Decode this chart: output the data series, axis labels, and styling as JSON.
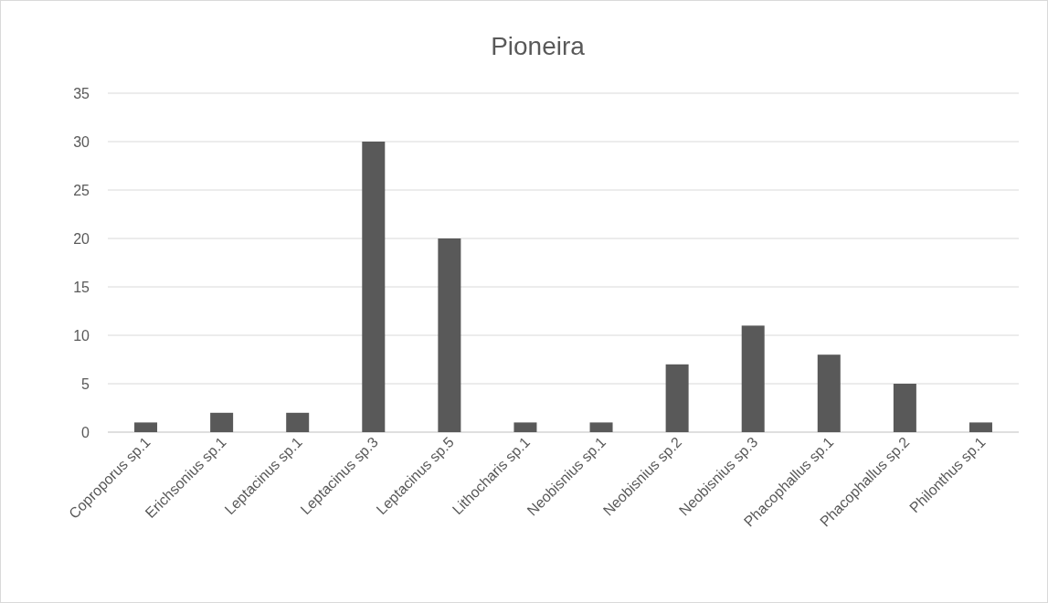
{
  "chart_data": {
    "type": "bar",
    "title": "Pioneira",
    "categories": [
      "Coproporus sp.1",
      "Erichsonius sp.1",
      "Leptacinus sp.1",
      "Leptacinus sp.3",
      "Leptacinus sp.5",
      "Lithocharis sp.1",
      "Neobisnius sp.1",
      "Neobisnius sp.2",
      "Neobisnius sp.3",
      "Phacophallus sp.1",
      "Phacophallus sp.2",
      "Philonthus sp.1"
    ],
    "values": [
      1,
      2,
      2,
      30,
      20,
      1,
      1,
      7,
      11,
      8,
      5,
      1
    ],
    "color": "#595959",
    "ylim": [
      0,
      35
    ],
    "yticks": [
      0,
      5,
      10,
      15,
      20,
      25,
      30,
      35
    ],
    "grid": "y"
  }
}
